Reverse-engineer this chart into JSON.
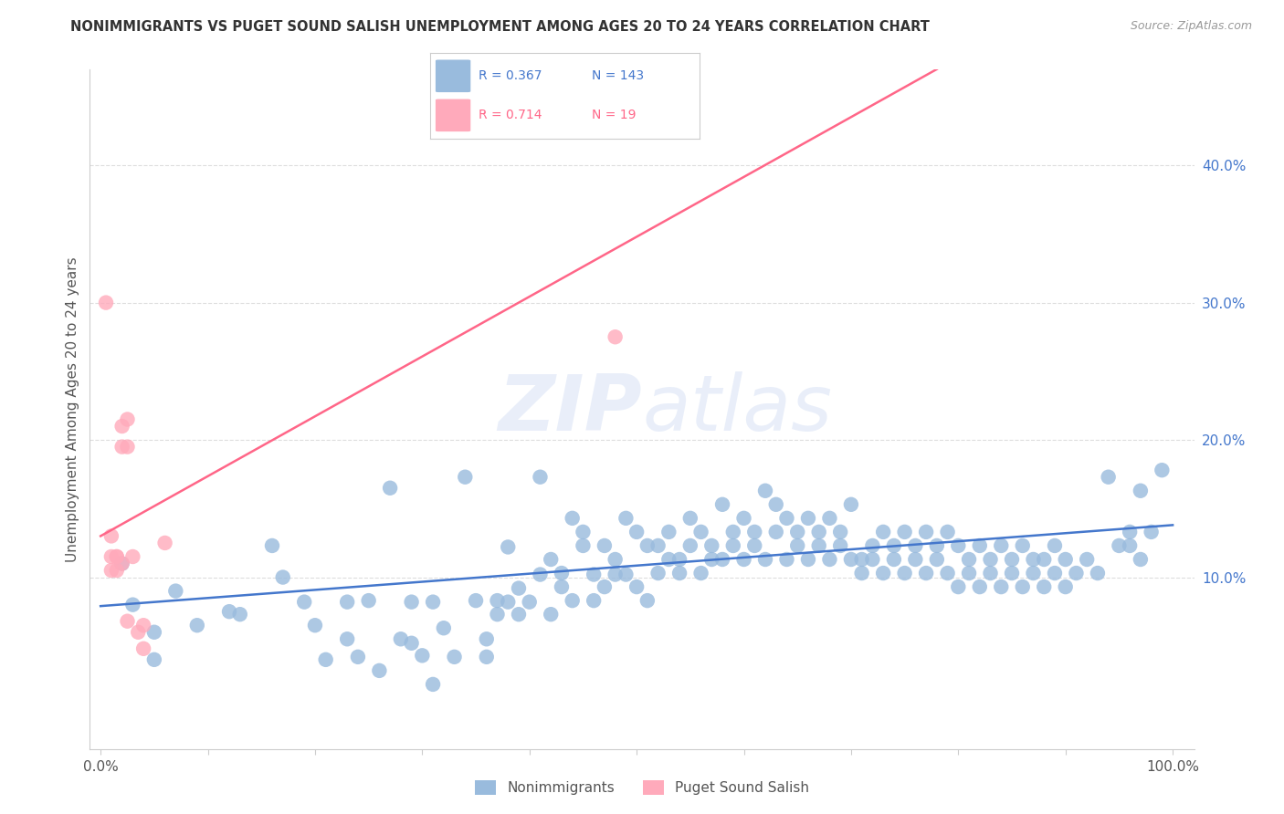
{
  "title": "NONIMMIGRANTS VS PUGET SOUND SALISH UNEMPLOYMENT AMONG AGES 20 TO 24 YEARS CORRELATION CHART",
  "source": "Source: ZipAtlas.com",
  "ylabel": "Unemployment Among Ages 20 to 24 years",
  "xlim": [
    -0.01,
    1.02
  ],
  "ylim": [
    -0.025,
    0.47
  ],
  "xtick_vals": [
    0.0,
    0.1,
    0.2,
    0.3,
    0.4,
    0.5,
    0.6,
    0.7,
    0.8,
    0.9,
    1.0
  ],
  "xticklabels": [
    "0.0%",
    "",
    "",
    "",
    "",
    "",
    "",
    "",
    "",
    "",
    "100.0%"
  ],
  "yticks_right": [
    0.1,
    0.2,
    0.3,
    0.4
  ],
  "ytick_right_labels": [
    "10.0%",
    "20.0%",
    "30.0%",
    "40.0%"
  ],
  "R_blue": 0.367,
  "N_blue": 143,
  "R_pink": 0.714,
  "N_pink": 19,
  "blue_line": [
    [
      0.0,
      0.079
    ],
    [
      1.0,
      0.138
    ]
  ],
  "pink_line": [
    [
      0.0,
      0.13
    ],
    [
      0.78,
      0.47
    ]
  ],
  "blue_dot_color": "#99BBDD",
  "pink_dot_color": "#FFAABB",
  "blue_line_color": "#4477CC",
  "pink_line_color": "#FF6688",
  "watermark_color": "#CCDDEEBB",
  "grid_color": "#DDDDDD",
  "title_color": "#333333",
  "axis_label_color": "#555555",
  "blue_scatter": [
    [
      0.02,
      0.11
    ],
    [
      0.03,
      0.08
    ],
    [
      0.05,
      0.06
    ],
    [
      0.05,
      0.04
    ],
    [
      0.07,
      0.09
    ],
    [
      0.09,
      0.065
    ],
    [
      0.12,
      0.075
    ],
    [
      0.13,
      0.073
    ],
    [
      0.16,
      0.123
    ],
    [
      0.17,
      0.1
    ],
    [
      0.19,
      0.082
    ],
    [
      0.2,
      0.065
    ],
    [
      0.21,
      0.04
    ],
    [
      0.23,
      0.082
    ],
    [
      0.23,
      0.055
    ],
    [
      0.24,
      0.042
    ],
    [
      0.25,
      0.083
    ],
    [
      0.26,
      0.032
    ],
    [
      0.27,
      0.165
    ],
    [
      0.28,
      0.055
    ],
    [
      0.29,
      0.052
    ],
    [
      0.29,
      0.082
    ],
    [
      0.3,
      0.043
    ],
    [
      0.31,
      0.022
    ],
    [
      0.31,
      0.082
    ],
    [
      0.32,
      0.063
    ],
    [
      0.33,
      0.042
    ],
    [
      0.34,
      0.173
    ],
    [
      0.35,
      0.083
    ],
    [
      0.36,
      0.055
    ],
    [
      0.36,
      0.042
    ],
    [
      0.37,
      0.073
    ],
    [
      0.37,
      0.083
    ],
    [
      0.38,
      0.082
    ],
    [
      0.38,
      0.122
    ],
    [
      0.39,
      0.092
    ],
    [
      0.39,
      0.073
    ],
    [
      0.4,
      0.082
    ],
    [
      0.41,
      0.102
    ],
    [
      0.41,
      0.173
    ],
    [
      0.42,
      0.073
    ],
    [
      0.42,
      0.113
    ],
    [
      0.43,
      0.093
    ],
    [
      0.43,
      0.103
    ],
    [
      0.44,
      0.143
    ],
    [
      0.44,
      0.083
    ],
    [
      0.45,
      0.123
    ],
    [
      0.45,
      0.133
    ],
    [
      0.46,
      0.102
    ],
    [
      0.46,
      0.083
    ],
    [
      0.47,
      0.123
    ],
    [
      0.47,
      0.093
    ],
    [
      0.48,
      0.113
    ],
    [
      0.48,
      0.102
    ],
    [
      0.49,
      0.102
    ],
    [
      0.49,
      0.143
    ],
    [
      0.5,
      0.133
    ],
    [
      0.5,
      0.093
    ],
    [
      0.51,
      0.123
    ],
    [
      0.51,
      0.083
    ],
    [
      0.52,
      0.103
    ],
    [
      0.52,
      0.123
    ],
    [
      0.53,
      0.113
    ],
    [
      0.53,
      0.133
    ],
    [
      0.54,
      0.113
    ],
    [
      0.54,
      0.103
    ],
    [
      0.55,
      0.143
    ],
    [
      0.55,
      0.123
    ],
    [
      0.56,
      0.133
    ],
    [
      0.56,
      0.103
    ],
    [
      0.57,
      0.113
    ],
    [
      0.57,
      0.123
    ],
    [
      0.58,
      0.153
    ],
    [
      0.58,
      0.113
    ],
    [
      0.59,
      0.123
    ],
    [
      0.59,
      0.133
    ],
    [
      0.6,
      0.113
    ],
    [
      0.6,
      0.143
    ],
    [
      0.61,
      0.133
    ],
    [
      0.61,
      0.123
    ],
    [
      0.62,
      0.163
    ],
    [
      0.62,
      0.113
    ],
    [
      0.63,
      0.133
    ],
    [
      0.63,
      0.153
    ],
    [
      0.64,
      0.143
    ],
    [
      0.64,
      0.113
    ],
    [
      0.65,
      0.123
    ],
    [
      0.65,
      0.133
    ],
    [
      0.66,
      0.143
    ],
    [
      0.66,
      0.113
    ],
    [
      0.67,
      0.123
    ],
    [
      0.67,
      0.133
    ],
    [
      0.68,
      0.143
    ],
    [
      0.68,
      0.113
    ],
    [
      0.69,
      0.133
    ],
    [
      0.69,
      0.123
    ],
    [
      0.7,
      0.153
    ],
    [
      0.7,
      0.113
    ],
    [
      0.71,
      0.113
    ],
    [
      0.71,
      0.103
    ],
    [
      0.72,
      0.123
    ],
    [
      0.72,
      0.113
    ],
    [
      0.73,
      0.133
    ],
    [
      0.73,
      0.103
    ],
    [
      0.74,
      0.113
    ],
    [
      0.74,
      0.123
    ],
    [
      0.75,
      0.133
    ],
    [
      0.75,
      0.103
    ],
    [
      0.76,
      0.123
    ],
    [
      0.76,
      0.113
    ],
    [
      0.77,
      0.133
    ],
    [
      0.77,
      0.103
    ],
    [
      0.78,
      0.123
    ],
    [
      0.78,
      0.113
    ],
    [
      0.79,
      0.133
    ],
    [
      0.79,
      0.103
    ],
    [
      0.8,
      0.093
    ],
    [
      0.8,
      0.123
    ],
    [
      0.81,
      0.113
    ],
    [
      0.81,
      0.103
    ],
    [
      0.82,
      0.123
    ],
    [
      0.82,
      0.093
    ],
    [
      0.83,
      0.113
    ],
    [
      0.83,
      0.103
    ],
    [
      0.84,
      0.123
    ],
    [
      0.84,
      0.093
    ],
    [
      0.85,
      0.113
    ],
    [
      0.85,
      0.103
    ],
    [
      0.86,
      0.123
    ],
    [
      0.86,
      0.093
    ],
    [
      0.87,
      0.113
    ],
    [
      0.87,
      0.103
    ],
    [
      0.88,
      0.113
    ],
    [
      0.88,
      0.093
    ],
    [
      0.89,
      0.103
    ],
    [
      0.89,
      0.123
    ],
    [
      0.9,
      0.113
    ],
    [
      0.9,
      0.093
    ],
    [
      0.91,
      0.103
    ],
    [
      0.92,
      0.113
    ],
    [
      0.93,
      0.103
    ],
    [
      0.94,
      0.173
    ],
    [
      0.95,
      0.123
    ],
    [
      0.96,
      0.133
    ],
    [
      0.96,
      0.123
    ],
    [
      0.97,
      0.113
    ],
    [
      0.97,
      0.163
    ],
    [
      0.98,
      0.133
    ],
    [
      0.99,
      0.178
    ]
  ],
  "pink_scatter": [
    [
      0.005,
      0.3
    ],
    [
      0.01,
      0.115
    ],
    [
      0.01,
      0.105
    ],
    [
      0.01,
      0.13
    ],
    [
      0.015,
      0.105
    ],
    [
      0.015,
      0.115
    ],
    [
      0.015,
      0.115
    ],
    [
      0.02,
      0.11
    ],
    [
      0.02,
      0.195
    ],
    [
      0.02,
      0.21
    ],
    [
      0.025,
      0.195
    ],
    [
      0.025,
      0.215
    ],
    [
      0.025,
      0.068
    ],
    [
      0.03,
      0.115
    ],
    [
      0.035,
      0.06
    ],
    [
      0.04,
      0.065
    ],
    [
      0.48,
      0.275
    ],
    [
      0.06,
      0.125
    ],
    [
      0.04,
      0.048
    ]
  ]
}
